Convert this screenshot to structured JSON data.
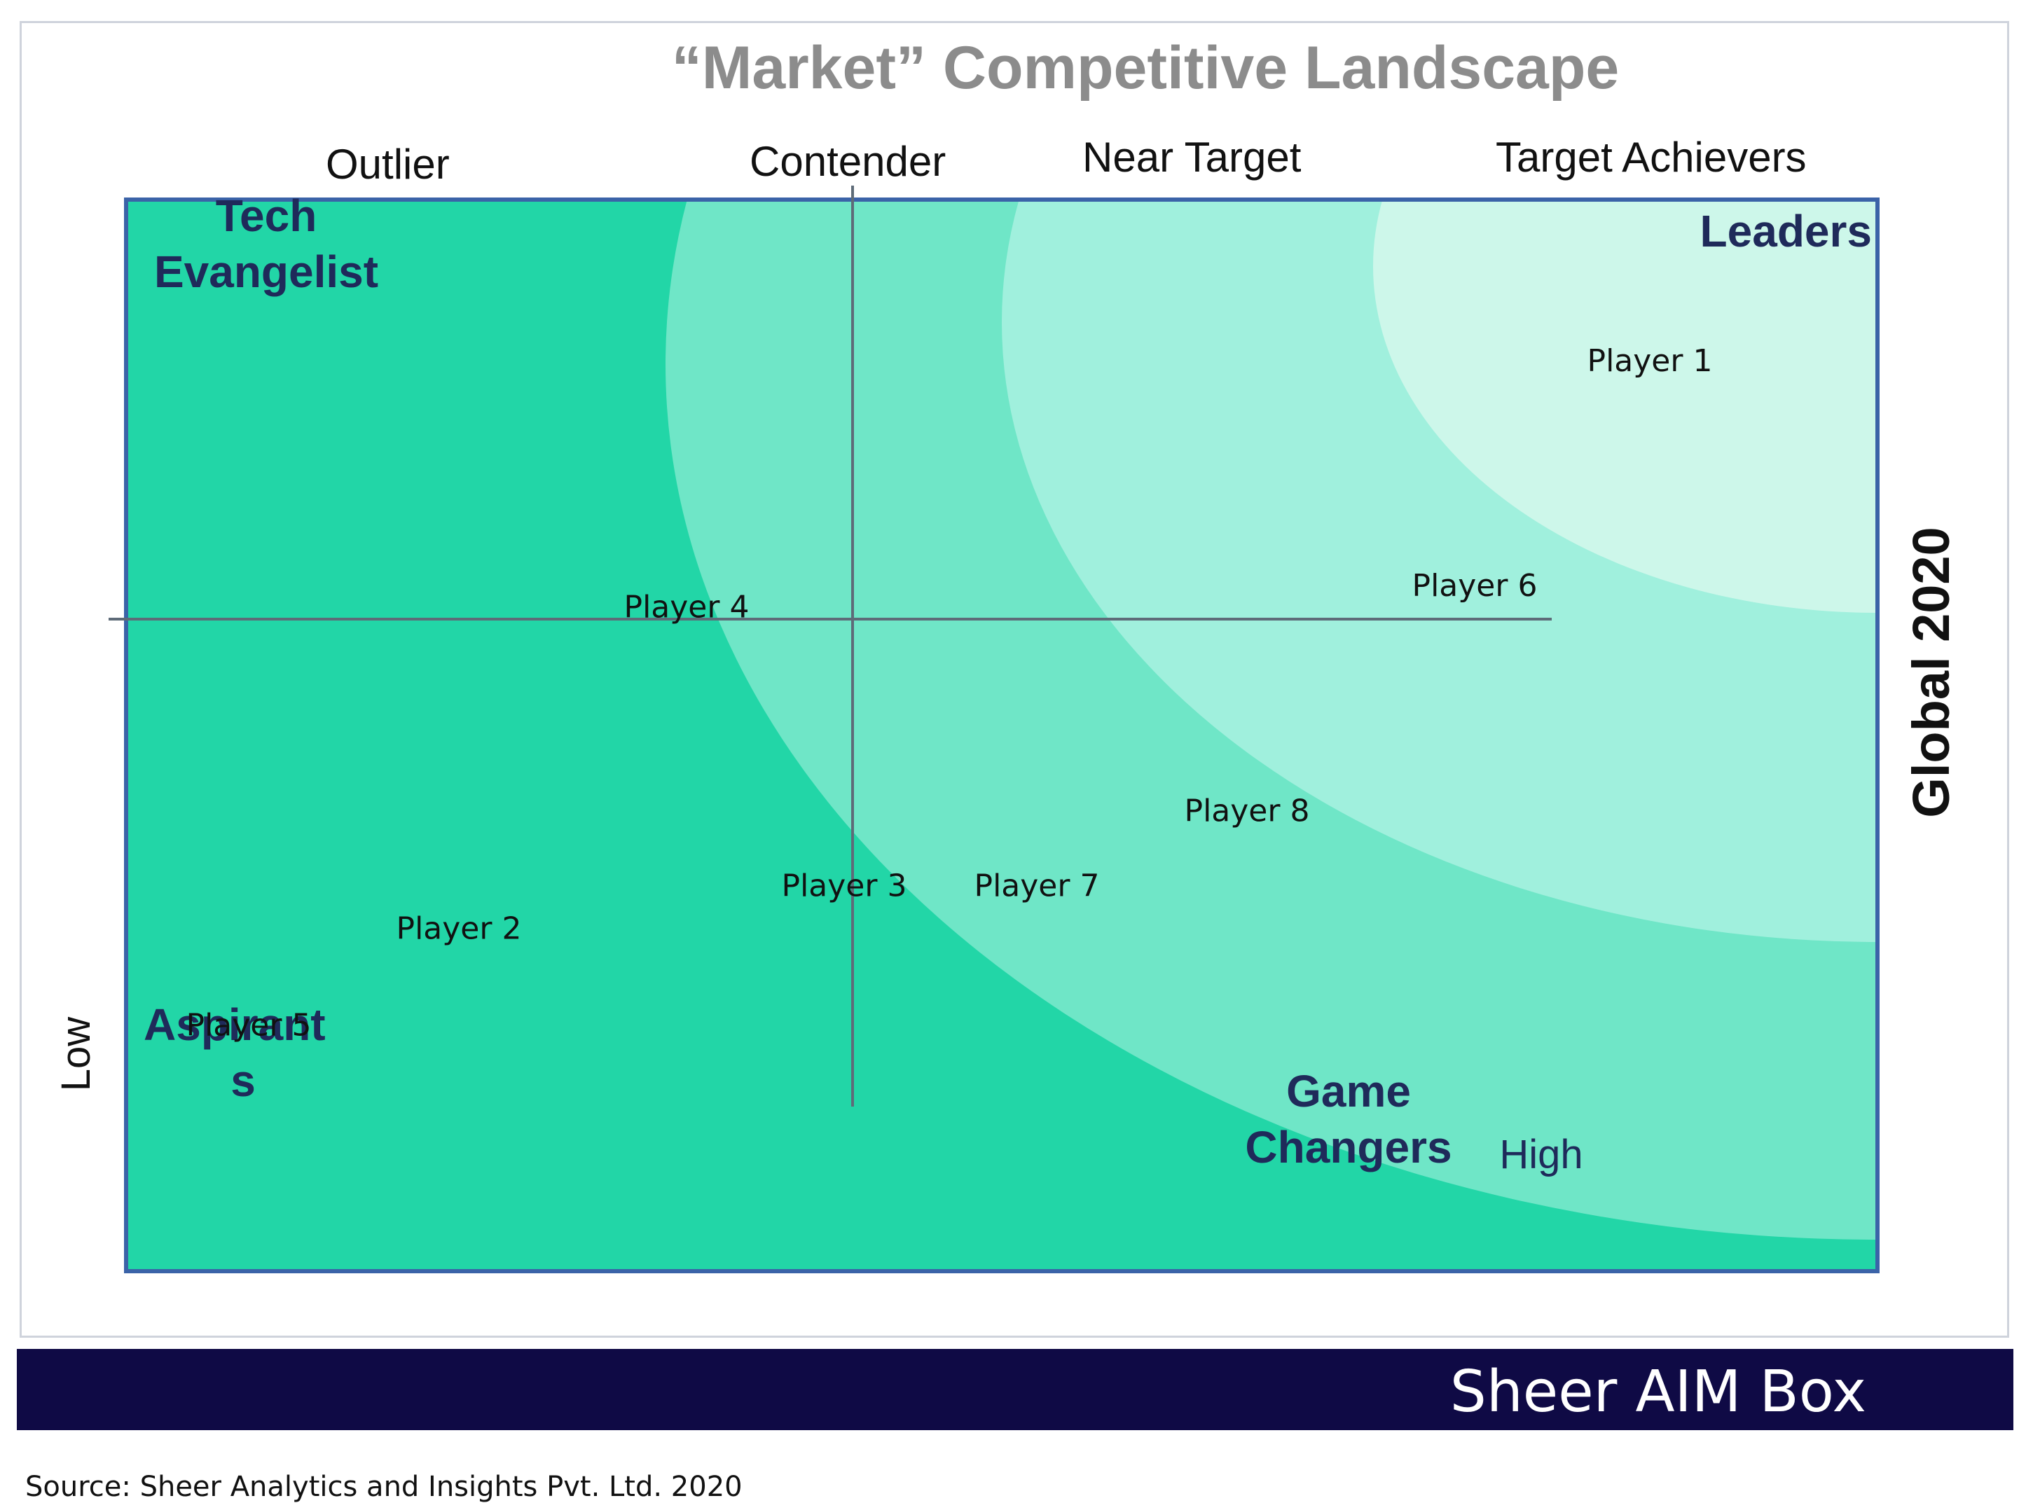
{
  "title": "“Market” Competitive Landscape",
  "columns": [
    "Outlier",
    "Contender",
    "Near Target",
    "Target Achievers"
  ],
  "quadrant_labels": {
    "top_left": [
      "Tech",
      "Evangelist"
    ],
    "top_right": [
      "Leaders"
    ],
    "bottom_left": [
      "Aspirant",
      "s"
    ],
    "bottom_right": [
      "Game",
      "Changers"
    ]
  },
  "axis_labels": {
    "y_low": "Low",
    "x_high": "High",
    "right": "Global 2020"
  },
  "banner": "Sheer AIM Box",
  "source": "Source: Sheer Analytics and Insights Pvt. Ltd. 2020",
  "colors": {
    "base": "#22d6a7",
    "ring1": "#6fe6c7",
    "ring2": "#a0f0dd",
    "ring3": "#cdf7ea",
    "border": "#3b63a8",
    "axis": "#5e6b78",
    "banner": "#0f0a45"
  },
  "chart_data": {
    "type": "scatter",
    "x_range": [
      0,
      100
    ],
    "y_range": [
      0,
      100
    ],
    "points": [
      {
        "label": "Player 1",
        "x": 87,
        "y": 84
      },
      {
        "label": "Player 6",
        "x": 77,
        "y": 63
      },
      {
        "label": "Player 4",
        "x": 32,
        "y": 61
      },
      {
        "label": "Player 8",
        "x": 64,
        "y": 42
      },
      {
        "label": "Player 3",
        "x": 41,
        "y": 35
      },
      {
        "label": "Player 7",
        "x": 52,
        "y": 35
      },
      {
        "label": "Player 2",
        "x": 19,
        "y": 31
      },
      {
        "label": "Player 5",
        "x": 7,
        "y": 22
      }
    ]
  }
}
